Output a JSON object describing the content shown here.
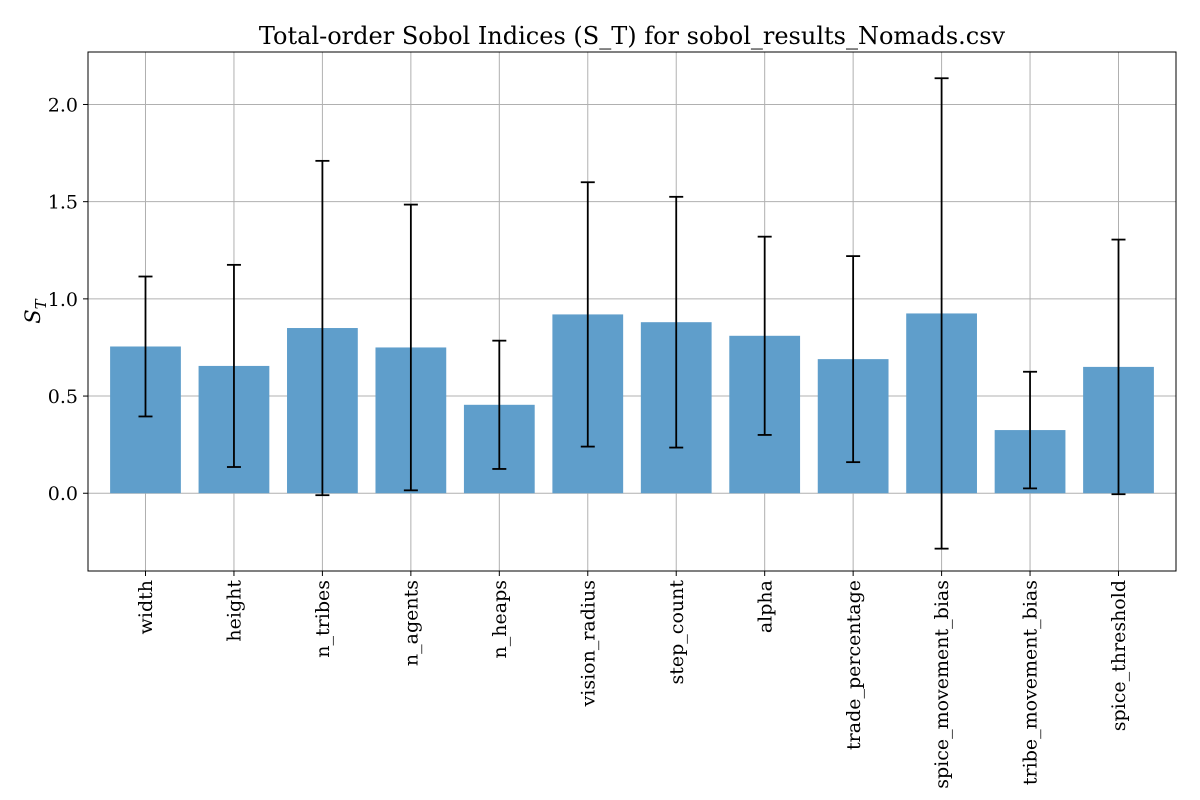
{
  "chart_data": {
    "type": "bar",
    "title": "Total-order Sobol Indices (S_T) for sobol_results_Nomads.csv",
    "ylabel_main": "S",
    "ylabel_sub": "T",
    "xlabel": "",
    "categories": [
      "width",
      "height",
      "n_tribes",
      "n_agents",
      "n_heaps",
      "vision_radius",
      "step_count",
      "alpha",
      "trade_percentage",
      "spice_movement_bias",
      "tribe_movement_bias",
      "spice_threshold"
    ],
    "values": [
      0.755,
      0.655,
      0.85,
      0.75,
      0.455,
      0.92,
      0.88,
      0.81,
      0.69,
      0.925,
      0.325,
      0.65
    ],
    "error": [
      0.36,
      0.52,
      0.86,
      0.735,
      0.33,
      0.68,
      0.645,
      0.51,
      0.53,
      1.21,
      0.3,
      0.655
    ],
    "yticks": [
      0.0,
      0.5,
      1.0,
      1.5,
      2.0
    ],
    "ytick_labels": [
      "0.0",
      "0.5",
      "1.0",
      "1.5",
      "2.0"
    ],
    "ylim": [
      -0.4,
      2.27
    ],
    "grid": true,
    "bar_color": "#5f9ecb",
    "error_color": "#000000"
  }
}
